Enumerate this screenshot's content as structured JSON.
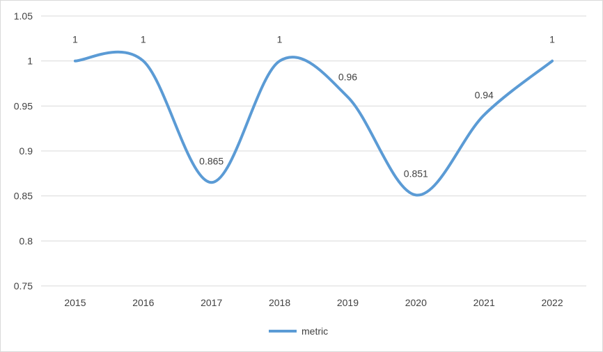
{
  "chart_data": {
    "type": "line",
    "smooth": true,
    "categories": [
      "2015",
      "2016",
      "2017",
      "2018",
      "2019",
      "2020",
      "2021",
      "2022"
    ],
    "series": [
      {
        "name": "metric",
        "values": [
          1,
          1,
          0.865,
          1,
          0.96,
          0.851,
          0.94,
          1
        ],
        "data_labels": [
          "1",
          "1",
          "0.865",
          "1",
          "0.96",
          "0.851",
          "0.94",
          "1"
        ],
        "color": "#5b9bd5"
      }
    ],
    "ylim": [
      0.75,
      1.05
    ],
    "yticks": [
      "0.75",
      "0.8",
      "0.85",
      "0.9",
      "0.95",
      "1",
      "1.05"
    ],
    "grid": true,
    "gridline_color": "#d9d9d9",
    "legend_position": "bottom"
  }
}
